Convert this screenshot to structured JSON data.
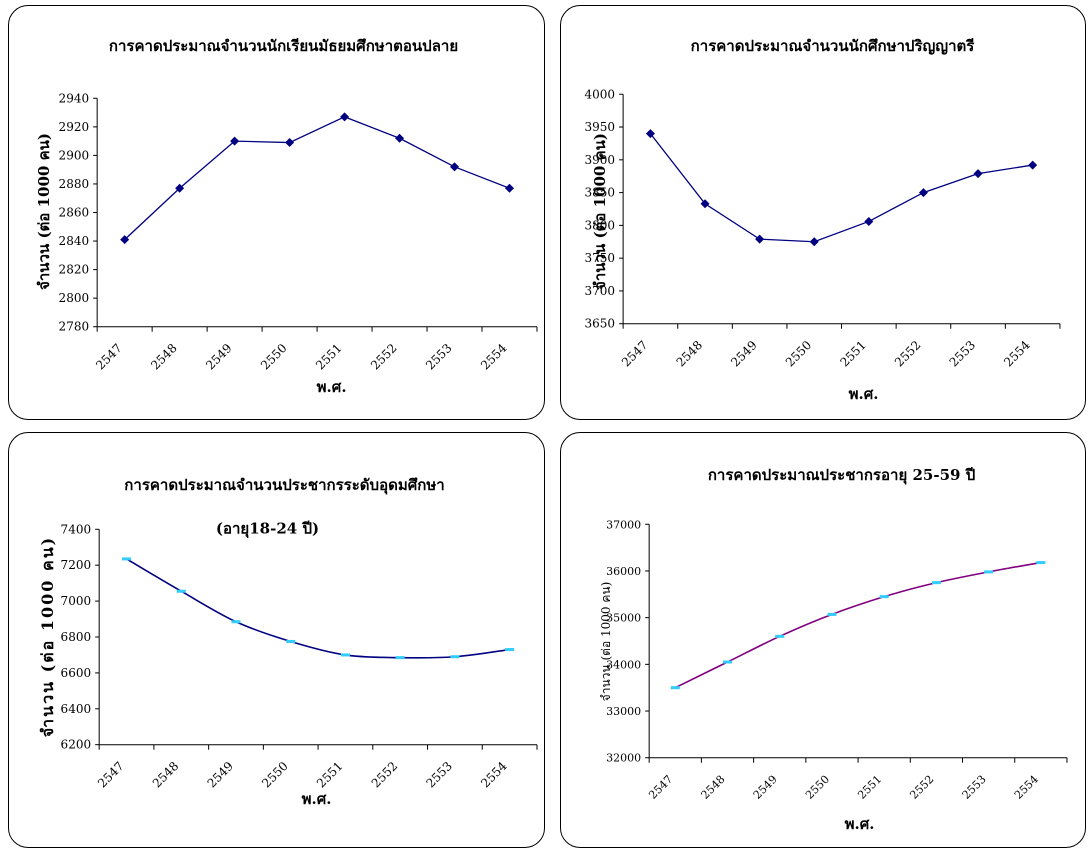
{
  "chart_data": [
    {
      "type": "line",
      "title": "การคาดประมาณจำนวนนักเรียนมัธยมศึกษาตอนปลาย",
      "xlabel": "พ.ศ.",
      "ylabel": "จำนวน (ต่อ 1000 คน)",
      "categories": [
        "2547",
        "2548",
        "2549",
        "2550",
        "2551",
        "2552",
        "2553",
        "2554"
      ],
      "series": [
        {
          "values": [
            2841,
            2877,
            2910,
            2909,
            2927,
            2912,
            2892,
            2877
          ],
          "color": "#000080",
          "marker": "diamond",
          "marker_color": "#000080"
        }
      ],
      "ylim": [
        2780,
        2940
      ],
      "yticks": [
        2780,
        2800,
        2820,
        2840,
        2860,
        2880,
        2900,
        2920,
        2940
      ],
      "grid": false,
      "legend": "none"
    },
    {
      "type": "line",
      "title": "การคาดประมาณจำนวนนักศึกษาปริญญาตรี",
      "xlabel": "พ.ศ.",
      "ylabel": "จำนวน (ต่อ 1000 คน)",
      "categories": [
        "2547",
        "2548",
        "2549",
        "2550",
        "2551",
        "2552",
        "2553",
        "2554"
      ],
      "series": [
        {
          "values": [
            3940,
            3833,
            3779,
            3775,
            3806,
            3850,
            3879,
            3892
          ],
          "color": "#000080",
          "marker": "diamond",
          "marker_color": "#000080"
        }
      ],
      "ylim": [
        3650,
        4000
      ],
      "yticks": [
        3650,
        3700,
        3750,
        3800,
        3850,
        3900,
        3950,
        4000
      ],
      "grid": false,
      "legend": "none"
    },
    {
      "type": "line",
      "title": "การคาดประมาณจำนวนประชากรระดับอุดมศึกษา",
      "subtitle": "(อายุ18-24 ปี)",
      "xlabel": "พ.ศ.",
      "ylabel": "จำนวน (ต่อ 1000 คน)",
      "categories": [
        "2547",
        "2548",
        "2549",
        "2550",
        "2551",
        "2552",
        "2553",
        "2554"
      ],
      "series": [
        {
          "values": [
            7235,
            7055,
            6885,
            6775,
            6700,
            6685,
            6690,
            6730
          ],
          "color": "#000080",
          "marker": "dash",
          "marker_color": "#33ccff",
          "smooth": true
        }
      ],
      "ylim": [
        6200,
        7400
      ],
      "yticks": [
        6200,
        6400,
        6600,
        6800,
        7000,
        7200,
        7400
      ],
      "grid": false,
      "legend": "none"
    },
    {
      "type": "line",
      "title": "การคาดประมาณประชากรอายุ 25-59 ปี",
      "xlabel": "พ.ศ.",
      "ylabel": "จำนวน (ต่อ 1000 คน)",
      "categories": [
        "2547",
        "2548",
        "2549",
        "2550",
        "2551",
        "2552",
        "2553",
        "2554"
      ],
      "series": [
        {
          "values": [
            33500,
            34050,
            34600,
            35070,
            35450,
            35750,
            35980,
            36180
          ],
          "color": "#800080",
          "marker": "dash",
          "marker_color": "#33ccff",
          "smooth": true
        }
      ],
      "ylim": [
        32000,
        37000
      ],
      "yticks": [
        32000,
        33000,
        34000,
        35000,
        36000,
        37000
      ],
      "grid": false,
      "legend": "none"
    }
  ]
}
